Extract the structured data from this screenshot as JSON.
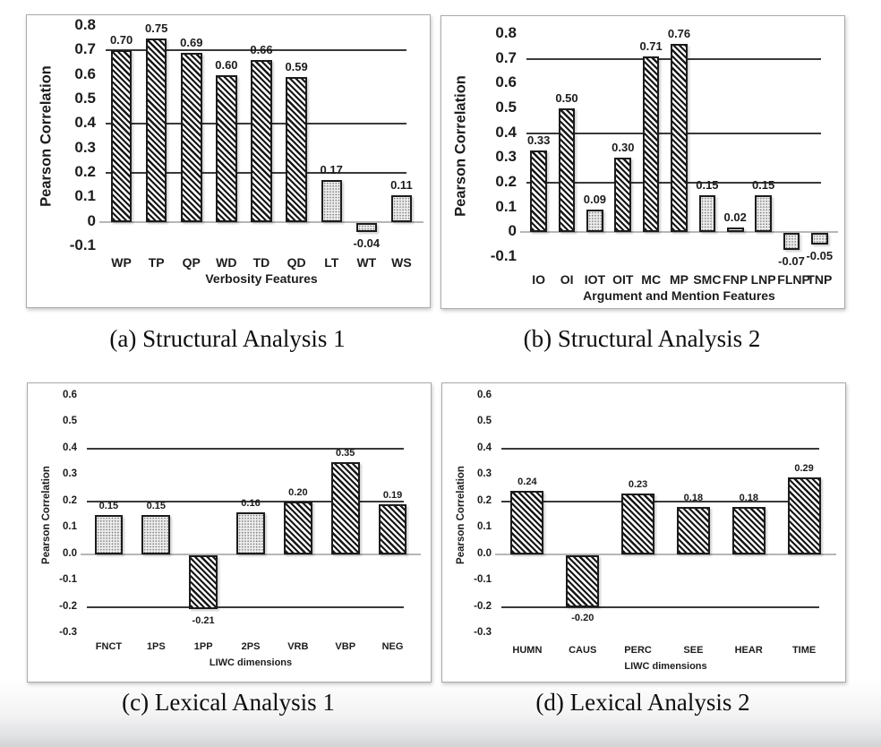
{
  "style": {
    "ink": "#1c1c1c",
    "grid_line": "#3a3a3a",
    "zero_line": "#b5b6b6",
    "panel_border": "#aaaaaa",
    "hatch": "#161616",
    "dot_bg": "#ededed",
    "dot": "#787878"
  },
  "chart_data": [
    {
      "id": "a",
      "type": "bar",
      "caption": "(a) Structural Analysis 1",
      "ylabel": "Pearson Correlation",
      "xlabel": "Verbosity Features",
      "ylim": [
        -0.1,
        0.8
      ],
      "yticks": [
        "0.8",
        "0.7",
        "0.6",
        "0.5",
        "0.4",
        "0.3",
        "0.2",
        "0.1",
        "0",
        "-0.1"
      ],
      "gridlines": [
        0.7,
        0.4,
        0.2
      ],
      "grid": true,
      "legend": "none",
      "categories": [
        "WP",
        "TP",
        "QP",
        "WD",
        "TD",
        "QD",
        "LT",
        "WT",
        "WS"
      ],
      "values": [
        0.7,
        0.75,
        0.69,
        0.6,
        0.66,
        0.59,
        0.17,
        -0.04,
        0.11
      ],
      "value_labels": [
        "0.70",
        "0.75",
        "0.69",
        "0.60",
        "0.66",
        "0.59",
        "0.17",
        "-0.04",
        "0.11"
      ],
      "patterns": [
        "diag",
        "diag",
        "diag",
        "diag",
        "diag",
        "diag",
        "dot",
        "dot",
        "dot"
      ]
    },
    {
      "id": "b",
      "type": "bar",
      "caption": "(b) Structural Analysis 2",
      "ylabel": "Pearson Correlation",
      "xlabel": "Argument and Mention Features",
      "ylim": [
        -0.1,
        0.8
      ],
      "yticks": [
        "0.8",
        "0.7",
        "0.6",
        "0.5",
        "0.4",
        "0.3",
        "0.2",
        "0.1",
        "0",
        "-0.1"
      ],
      "gridlines": [
        0.7,
        0.4,
        0.2
      ],
      "grid": true,
      "legend": "none",
      "categories": [
        "IO",
        "OI",
        "IOT",
        "OIT",
        "MC",
        "MP",
        "SMC",
        "FNP",
        "LNP",
        "FLNP",
        "TNP"
      ],
      "values": [
        0.33,
        0.5,
        0.09,
        0.3,
        0.71,
        0.76,
        0.15,
        0.02,
        0.15,
        -0.07,
        -0.05
      ],
      "value_labels": [
        "0.33",
        "0.50",
        "0.09",
        "0.30",
        "0.71",
        "0.76",
        "0.15",
        "0.02",
        "0.15",
        "-0.07",
        "-0.05"
      ],
      "patterns": [
        "diag",
        "diag",
        "dot",
        "diag",
        "diag",
        "diag",
        "dot",
        "dot",
        "dot",
        "dot",
        "dot"
      ]
    },
    {
      "id": "c",
      "type": "bar",
      "caption": "(c) Lexical Analysis 1",
      "ylabel": "Pearson Correlation",
      "xlabel": "LIWC dimensions",
      "ylim": [
        -0.3,
        0.6
      ],
      "yticks": [
        "0.6",
        "0.5",
        "0.4",
        "0.3",
        "0.2",
        "0.1",
        "0.0",
        "-0.1",
        "-0.2",
        "-0.3"
      ],
      "gridlines": [
        0.4,
        0.2,
        -0.2
      ],
      "grid": true,
      "legend": "none",
      "categories": [
        "FNCT",
        "1PS",
        "1PP",
        "2PS",
        "VRB",
        "VBP",
        "NEG"
      ],
      "values": [
        0.15,
        0.15,
        -0.21,
        0.16,
        0.2,
        0.35,
        0.19
      ],
      "value_labels": [
        "0.15",
        "0.15",
        "-0.21",
        "0.16",
        "0.20",
        "0.35",
        "0.19"
      ],
      "patterns": [
        "dot",
        "dot",
        "diag",
        "dot",
        "diag",
        "diag",
        "diag"
      ]
    },
    {
      "id": "d",
      "type": "bar",
      "caption": "(d) Lexical Analysis 2",
      "ylabel": "Pearson Correlation",
      "xlabel": "LIWC dimensions",
      "ylim": [
        -0.3,
        0.6
      ],
      "yticks": [
        "0.6",
        "0.5",
        "0.4",
        "0.3",
        "0.2",
        "0.1",
        "0.0",
        "-0.1",
        "-0.2",
        "-0.3"
      ],
      "gridlines": [
        0.4,
        0.2,
        -0.2
      ],
      "grid": true,
      "legend": "none",
      "categories": [
        "HUMN",
        "CAUS",
        "PERC",
        "SEE",
        "HEAR",
        "TIME"
      ],
      "values": [
        0.24,
        -0.2,
        0.23,
        0.18,
        0.18,
        0.29
      ],
      "value_labels": [
        "0.24",
        "-0.20",
        "0.23",
        "0.18",
        "0.18",
        "0.29"
      ],
      "patterns": [
        "diag",
        "diag",
        "diag",
        "diag",
        "diag",
        "diag"
      ]
    }
  ]
}
